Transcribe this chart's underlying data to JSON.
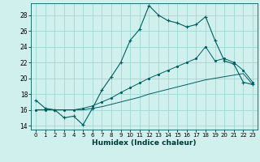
{
  "xlabel": "Humidex (Indice chaleur)",
  "background_color": "#cff0ec",
  "grid_color": "#9ed8d2",
  "line_color": "#006060",
  "xlim": [
    -0.5,
    23.5
  ],
  "ylim": [
    13.5,
    29.5
  ],
  "xticks": [
    0,
    1,
    2,
    3,
    4,
    5,
    6,
    7,
    8,
    9,
    10,
    11,
    12,
    13,
    14,
    15,
    16,
    17,
    18,
    19,
    20,
    21,
    22,
    23
  ],
  "yticks": [
    14,
    16,
    18,
    20,
    22,
    24,
    26,
    28
  ],
  "series1_x": [
    0,
    1,
    2,
    3,
    4,
    5,
    6,
    7,
    8,
    9,
    10,
    11,
    12,
    13,
    14,
    15,
    16,
    17,
    18,
    19,
    20,
    21,
    22,
    23
  ],
  "series1_y": [
    17.2,
    16.2,
    16.0,
    15.0,
    15.2,
    14.1,
    16.2,
    18.5,
    20.2,
    22.0,
    24.8,
    26.2,
    29.2,
    28.0,
    27.3,
    27.0,
    26.5,
    26.8,
    27.8,
    24.8,
    22.2,
    21.8,
    19.5,
    19.2
  ],
  "series2_x": [
    0,
    1,
    2,
    3,
    4,
    5,
    6,
    7,
    8,
    9,
    10,
    11,
    12,
    13,
    14,
    15,
    16,
    17,
    18,
    19,
    20,
    21,
    22,
    23
  ],
  "series2_y": [
    16.0,
    16.0,
    16.0,
    16.0,
    16.0,
    16.0,
    16.2,
    16.4,
    16.7,
    17.0,
    17.3,
    17.6,
    18.0,
    18.3,
    18.6,
    18.9,
    19.2,
    19.5,
    19.8,
    20.0,
    20.2,
    20.4,
    20.6,
    19.2
  ],
  "series3_x": [
    0,
    1,
    2,
    3,
    4,
    5,
    6,
    7,
    8,
    9,
    10,
    11,
    12,
    13,
    14,
    15,
    16,
    17,
    18,
    19,
    20,
    21,
    22,
    23
  ],
  "series3_y": [
    16.0,
    16.0,
    16.0,
    16.0,
    16.0,
    16.2,
    16.5,
    17.0,
    17.5,
    18.2,
    18.8,
    19.4,
    20.0,
    20.5,
    21.0,
    21.5,
    22.0,
    22.5,
    24.0,
    22.2,
    22.5,
    22.0,
    21.0,
    19.5
  ]
}
